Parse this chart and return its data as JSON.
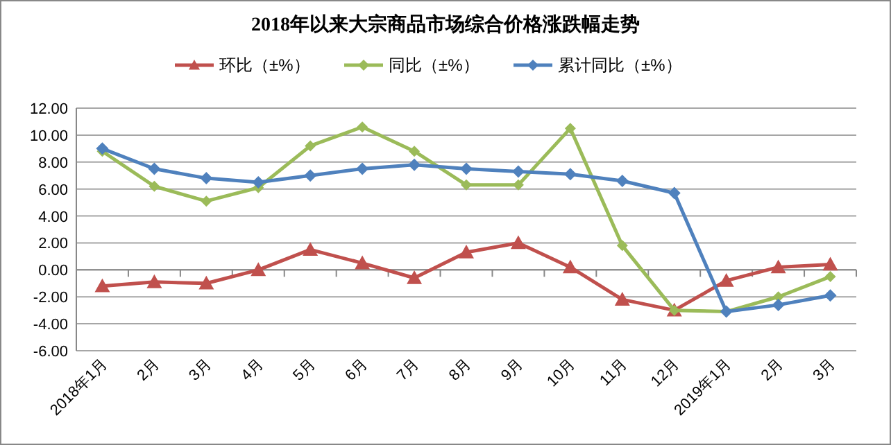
{
  "chart_data": {
    "type": "line",
    "title": "2018年以来大宗商品市场综合价格涨跌幅走势",
    "categories": [
      "2018年1月",
      "2月",
      "3月",
      "4月",
      "5月",
      "6月",
      "7月",
      "8月",
      "9月",
      "10月",
      "11月",
      "12月",
      "2019年1月",
      "2月",
      "3月"
    ],
    "series": [
      {
        "name": "环比（±%）",
        "color": "#c0504d",
        "marker": "triangle",
        "values": [
          -1.2,
          -0.9,
          -1.0,
          0.0,
          1.5,
          0.5,
          -0.6,
          1.3,
          2.0,
          0.2,
          -2.2,
          -3.0,
          -0.8,
          0.2,
          0.4
        ]
      },
      {
        "name": "同比（±%）",
        "color": "#9bbb59",
        "marker": "diamond",
        "values": [
          8.8,
          6.2,
          5.1,
          6.1,
          9.2,
          10.6,
          8.8,
          6.3,
          6.3,
          10.5,
          1.8,
          -3.0,
          -3.1,
          -2.0,
          -0.5
        ]
      },
      {
        "name": "累计同比（±%）",
        "color": "#4f81bd",
        "marker": "diamond",
        "values": [
          9.0,
          7.5,
          6.8,
          6.5,
          7.0,
          7.5,
          7.8,
          7.5,
          7.3,
          7.1,
          6.6,
          5.7,
          -3.1,
          -2.6,
          -1.9
        ]
      }
    ],
    "ylim": [
      -6,
      12
    ],
    "yticks": [
      {
        "value": -6,
        "label": "-6.00"
      },
      {
        "value": -4,
        "label": "-4.00"
      },
      {
        "value": -2,
        "label": "-2.00"
      },
      {
        "value": 0,
        "label": "0.00"
      },
      {
        "value": 2,
        "label": "2.00"
      },
      {
        "value": 4,
        "label": "4.00"
      },
      {
        "value": 6,
        "label": "6.00"
      },
      {
        "value": 8,
        "label": "8.00"
      },
      {
        "value": 10,
        "label": "10.00"
      },
      {
        "value": 12,
        "label": "12.00"
      }
    ],
    "grid": "y",
    "legend": "top"
  }
}
